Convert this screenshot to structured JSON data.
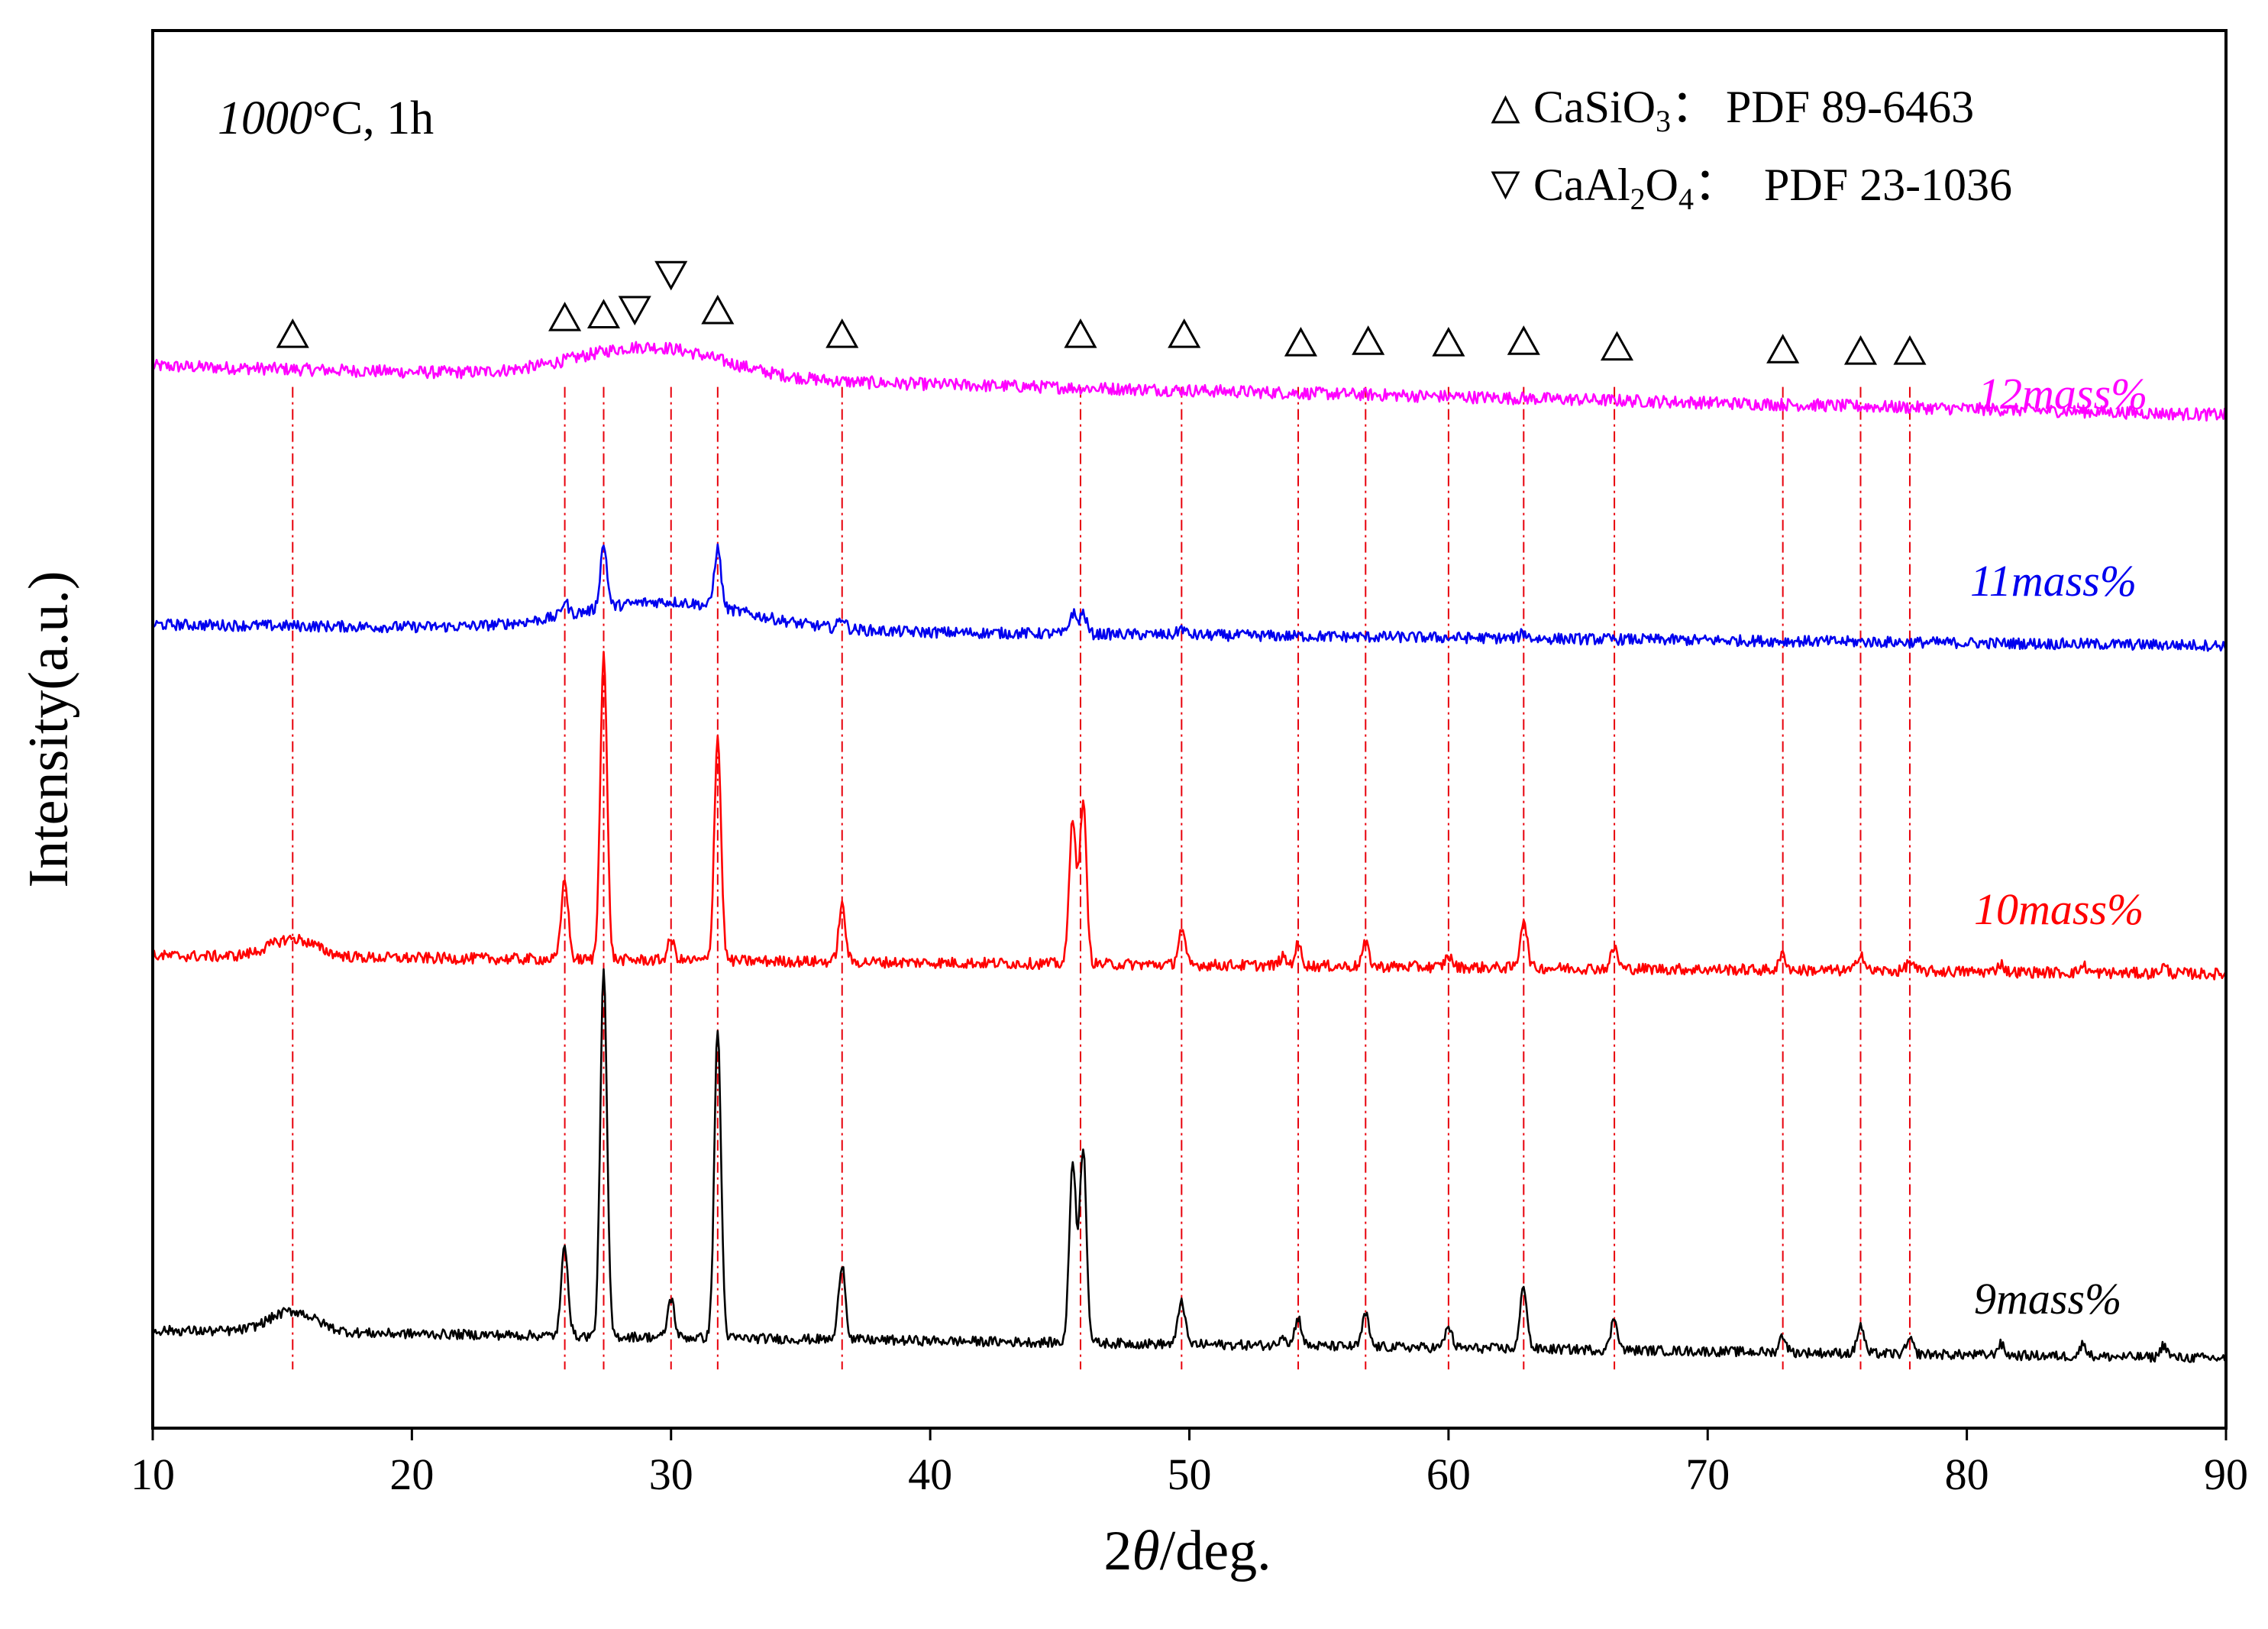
{
  "chart_data": {
    "type": "line",
    "title": "",
    "condition": {
      "temperature": "1000",
      "unit_and_time": "°C, 1h"
    },
    "xlabel": {
      "prefix": "2",
      "theta": "θ",
      "suffix": "/deg."
    },
    "ylabel": "Intensity(a.u.)",
    "xlim": [
      10,
      90
    ],
    "ylim": [
      0,
      100
    ],
    "grid": false,
    "x_ticks": [
      "10",
      "20",
      "30",
      "40",
      "50",
      "60",
      "70",
      "80",
      "90"
    ],
    "legend_position": "top-right",
    "legend": [
      {
        "marker": "triangle-up",
        "phase": "CaSiO",
        "sub": "3",
        "sub2": "",
        "sep": "：",
        "pdf": "PDF 89-6463"
      },
      {
        "marker": "triangle-down",
        "phase": "CaAl",
        "sub": "2",
        "mid": "O",
        "sub2": "4",
        "sep": "：",
        "pdf": "PDF 23-1036"
      }
    ],
    "reference_peaks_CaSiO3": [
      15.4,
      25.9,
      27.4,
      31.8,
      36.6,
      45.8,
      49.7,
      54.2,
      56.8,
      60.0,
      62.9,
      66.4,
      72.9,
      75.9,
      77.8
    ],
    "reference_peaks_CaAl2O4": [
      28.6,
      30.0
    ],
    "series": [
      {
        "name": "12mass%",
        "color": "#ff00ff",
        "baseline_start": 76,
        "baseline_end": 72.5,
        "noise": 0.45,
        "humps": [
          {
            "center": 29.2,
            "width": 2.8,
            "height": 2.2
          }
        ],
        "peaks": []
      },
      {
        "name": "11mass%",
        "color": "#0000ee",
        "baseline_start": 57.5,
        "baseline_end": 56.0,
        "noise": 0.4,
        "humps": [
          {
            "center": 29.8,
            "width": 3.2,
            "height": 2.0
          }
        ],
        "peaks": [
          {
            "x": 25.9,
            "h": 1.0
          },
          {
            "x": 27.4,
            "h": 4.5
          },
          {
            "x": 31.8,
            "h": 4.2
          },
          {
            "x": 36.6,
            "h": 0.8
          },
          {
            "x": 45.5,
            "h": 1.5
          },
          {
            "x": 45.9,
            "h": 1.5
          },
          {
            "x": 49.7,
            "h": 0.5
          },
          {
            "x": 62.9,
            "h": 0.4
          }
        ]
      },
      {
        "name": "10mass%",
        "color": "#ff0000",
        "baseline_start": 33.8,
        "baseline_end": 32.5,
        "noise": 0.4,
        "humps": [
          {
            "center": 15.4,
            "width": 0.9,
            "height": 1.3
          }
        ],
        "peaks": [
          {
            "x": 25.9,
            "h": 5.8
          },
          {
            "x": 27.4,
            "h": 22.0
          },
          {
            "x": 30.0,
            "h": 1.5
          },
          {
            "x": 31.8,
            "h": 16.0
          },
          {
            "x": 36.6,
            "h": 4.0
          },
          {
            "x": 45.5,
            "h": 10.5
          },
          {
            "x": 45.9,
            "h": 11.5
          },
          {
            "x": 49.7,
            "h": 2.5
          },
          {
            "x": 53.6,
            "h": 0.6
          },
          {
            "x": 54.2,
            "h": 1.5
          },
          {
            "x": 56.8,
            "h": 1.6
          },
          {
            "x": 60.0,
            "h": 0.8
          },
          {
            "x": 62.9,
            "h": 3.5
          },
          {
            "x": 66.4,
            "h": 1.5
          },
          {
            "x": 72.9,
            "h": 1.1
          },
          {
            "x": 75.9,
            "h": 1.3
          },
          {
            "x": 77.8,
            "h": 0.7
          },
          {
            "x": 81.3,
            "h": 0.6
          },
          {
            "x": 84.5,
            "h": 0.5
          },
          {
            "x": 87.6,
            "h": 0.5
          }
        ]
      },
      {
        "name": "9mass%",
        "color": "#000000",
        "baseline_start": 7.0,
        "baseline_end": 5.0,
        "noise": 0.35,
        "humps": [
          {
            "center": 15.4,
            "width": 0.9,
            "height": 1.5
          }
        ],
        "peaks": [
          {
            "x": 25.9,
            "h": 6.5
          },
          {
            "x": 27.4,
            "h": 26.0
          },
          {
            "x": 30.0,
            "h": 2.8
          },
          {
            "x": 31.8,
            "h": 22.0
          },
          {
            "x": 36.6,
            "h": 5.5
          },
          {
            "x": 45.5,
            "h": 13.0
          },
          {
            "x": 45.9,
            "h": 14.0
          },
          {
            "x": 49.7,
            "h": 3.2
          },
          {
            "x": 53.6,
            "h": 0.8
          },
          {
            "x": 54.2,
            "h": 2.0
          },
          {
            "x": 56.8,
            "h": 2.3
          },
          {
            "x": 60.0,
            "h": 1.5
          },
          {
            "x": 62.9,
            "h": 4.5
          },
          {
            "x": 66.4,
            "h": 2.3
          },
          {
            "x": 72.9,
            "h": 1.2
          },
          {
            "x": 75.9,
            "h": 2.0
          },
          {
            "x": 77.8,
            "h": 1.0
          },
          {
            "x": 81.3,
            "h": 0.8
          },
          {
            "x": 84.5,
            "h": 0.9
          },
          {
            "x": 87.6,
            "h": 0.9
          }
        ]
      }
    ],
    "peak_markers": [
      {
        "x": 15.4,
        "y": 78.3,
        "type": "up"
      },
      {
        "x": 25.9,
        "y": 79.5,
        "type": "up"
      },
      {
        "x": 27.4,
        "y": 79.7,
        "type": "up"
      },
      {
        "x": 28.6,
        "y": 80.0,
        "type": "down"
      },
      {
        "x": 30.0,
        "y": 82.5,
        "type": "down"
      },
      {
        "x": 31.8,
        "y": 80.0,
        "type": "up"
      },
      {
        "x": 36.6,
        "y": 78.3,
        "type": "up"
      },
      {
        "x": 45.8,
        "y": 78.3,
        "type": "up"
      },
      {
        "x": 49.8,
        "y": 78.3,
        "type": "up"
      },
      {
        "x": 54.3,
        "y": 77.7,
        "type": "up"
      },
      {
        "x": 56.9,
        "y": 77.8,
        "type": "up"
      },
      {
        "x": 60.0,
        "y": 77.7,
        "type": "up"
      },
      {
        "x": 62.9,
        "y": 77.8,
        "type": "up"
      },
      {
        "x": 66.5,
        "y": 77.4,
        "type": "up"
      },
      {
        "x": 72.9,
        "y": 77.2,
        "type": "up"
      },
      {
        "x": 75.9,
        "y": 77.1,
        "type": "up"
      },
      {
        "x": 77.8,
        "y": 77.1,
        "type": "up"
      }
    ],
    "reference_lines": [
      15.4,
      25.9,
      27.4,
      30.0,
      31.8,
      36.6,
      45.8,
      49.7,
      54.2,
      56.8,
      60.0,
      62.9,
      66.4,
      72.9,
      75.9,
      77.8
    ],
    "reference_line_color": "#e8000b"
  }
}
